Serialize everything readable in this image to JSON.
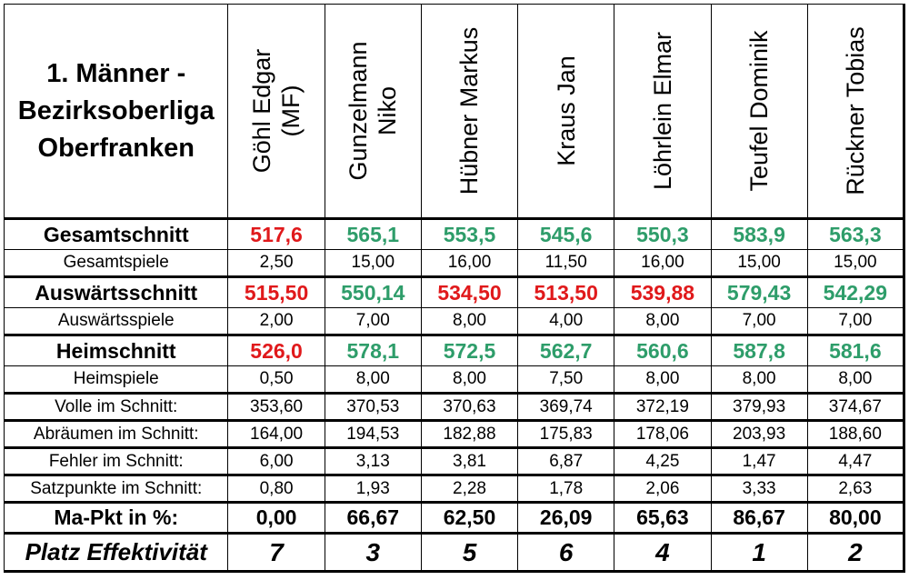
{
  "title_lines": [
    "1. Männer -",
    "Bezirksoberliga",
    "Oberfranken"
  ],
  "colors": {
    "red": "#e0191b",
    "green": "#2e9d6a",
    "text": "#000000"
  },
  "players": [
    {
      "line1": "Göhl Edgar",
      "line2": "(MF)"
    },
    {
      "line1": "Gunzelmann",
      "line2": "Niko"
    },
    {
      "line1": "Hübner Markus",
      "line2": ""
    },
    {
      "line1": "Kraus Jan",
      "line2": ""
    },
    {
      "line1": "Löhrlein Elmar",
      "line2": ""
    },
    {
      "line1": "Teufel Dominik",
      "line2": ""
    },
    {
      "line1": "Rückner Tobias",
      "line2": ""
    }
  ],
  "rows": [
    {
      "label": "Gesamtschnitt",
      "big": true,
      "values": [
        "517,6",
        "565,1",
        "553,5",
        "545,6",
        "550,3",
        "583,9",
        "563,3"
      ],
      "colors": [
        "red",
        "green",
        "green",
        "green",
        "green",
        "green",
        "green"
      ]
    },
    {
      "label": "Gesamtspiele",
      "big": false,
      "values": [
        "2,50",
        "15,00",
        "16,00",
        "11,50",
        "16,00",
        "15,00",
        "15,00"
      ],
      "colors": [
        "",
        "",
        "",
        "",
        "",
        "",
        ""
      ]
    },
    {
      "label": "Auswärtsschnitt",
      "big": true,
      "values": [
        "515,50",
        "550,14",
        "534,50",
        "513,50",
        "539,88",
        "579,43",
        "542,29"
      ],
      "colors": [
        "red",
        "green",
        "red",
        "red",
        "red",
        "green",
        "green"
      ]
    },
    {
      "label": "Auswärtsspiele",
      "big": false,
      "values": [
        "2,00",
        "7,00",
        "8,00",
        "4,00",
        "8,00",
        "7,00",
        "7,00"
      ],
      "colors": [
        "",
        "",
        "",
        "",
        "",
        "",
        ""
      ]
    },
    {
      "label": "Heimschnitt",
      "big": true,
      "values": [
        "526,0",
        "578,1",
        "572,5",
        "562,7",
        "560,6",
        "587,8",
        "581,6"
      ],
      "colors": [
        "red",
        "green",
        "green",
        "green",
        "green",
        "green",
        "green"
      ]
    },
    {
      "label": "Heimspiele",
      "big": false,
      "values": [
        "0,50",
        "8,00",
        "8,00",
        "7,50",
        "8,00",
        "8,00",
        "8,00"
      ],
      "colors": [
        "",
        "",
        "",
        "",
        "",
        "",
        ""
      ]
    },
    {
      "label": "Volle im Schnitt:",
      "big": false,
      "values": [
        "353,60",
        "370,53",
        "370,63",
        "369,74",
        "372,19",
        "379,93",
        "374,67"
      ],
      "colors": [
        "",
        "",
        "",
        "",
        "",
        "",
        ""
      ]
    },
    {
      "label": "Abräumen im Schnitt:",
      "big": false,
      "values": [
        "164,00",
        "194,53",
        "182,88",
        "175,83",
        "178,06",
        "203,93",
        "188,60"
      ],
      "colors": [
        "",
        "",
        "",
        "",
        "",
        "",
        ""
      ]
    },
    {
      "label": "Fehler im Schnitt:",
      "big": false,
      "values": [
        "6,00",
        "3,13",
        "3,81",
        "6,87",
        "4,25",
        "1,47",
        "4,47"
      ],
      "colors": [
        "",
        "",
        "",
        "",
        "",
        "",
        ""
      ]
    },
    {
      "label": "Satzpunkte im Schnitt:",
      "big": false,
      "values": [
        "0,80",
        "1,93",
        "2,28",
        "1,78",
        "2,06",
        "3,33",
        "2,63"
      ],
      "colors": [
        "",
        "",
        "",
        "",
        "",
        "",
        ""
      ]
    },
    {
      "label": "Ma-Pkt in %:",
      "big": true,
      "values": [
        "0,00",
        "66,67",
        "62,50",
        "26,09",
        "65,63",
        "86,67",
        "80,00"
      ],
      "colors": [
        "",
        "",
        "",
        "",
        "",
        "",
        ""
      ]
    }
  ],
  "ranking": {
    "label": "Platz Effektivität",
    "values": [
      "7",
      "3",
      "5",
      "6",
      "4",
      "1",
      "2"
    ]
  }
}
